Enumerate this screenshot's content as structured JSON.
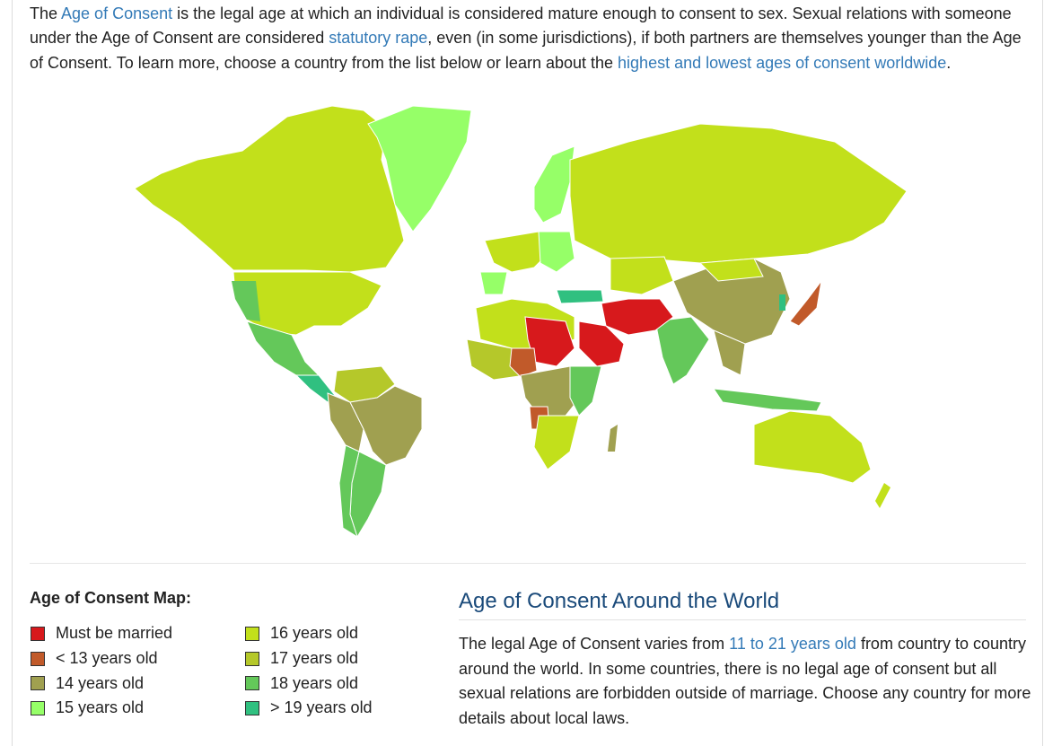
{
  "intro": {
    "t1": "The ",
    "link_aoc": "Age of Consent",
    "t2": " is the legal age at which an individual is considered mature enough to consent to sex. Sexual relations with someone under the Age of Consent are considered ",
    "link_statutory": "statutory rape",
    "t3": ", even (in some jurisdictions), if both partners are themselves younger than the Age of Consent. To learn more, choose a country from the list below or learn about the ",
    "link_highest": "highest and lowest ages of consent worldwide",
    "t4": "."
  },
  "legend": {
    "title": "Age of Consent Map:",
    "col1": [
      {
        "label": "Must be married",
        "color": "#d7191c"
      },
      {
        "label": "< 13 years old",
        "color": "#c15a2a"
      },
      {
        "label": "14 years old",
        "color": "#a0a050"
      },
      {
        "label": "15 years old",
        "color": "#96ff68"
      }
    ],
    "col2": [
      {
        "label": "16 years old",
        "color": "#c2e01b"
      },
      {
        "label": "17 years old",
        "color": "#b5c82a"
      },
      {
        "label": "18 years old",
        "color": "#64c85a"
      },
      {
        "label": "> 19 years old",
        "color": "#30c080"
      }
    ]
  },
  "side": {
    "title": "Age of Consent Around the World",
    "t1": "The legal Age of Consent varies from ",
    "link_range": "11 to 21 years old",
    "t2": " from country to country around the world. In some countries, there is no legal age of consent but all sexual relations are forbidden outside of marriage. Choose any country for more details about local laws."
  }
}
